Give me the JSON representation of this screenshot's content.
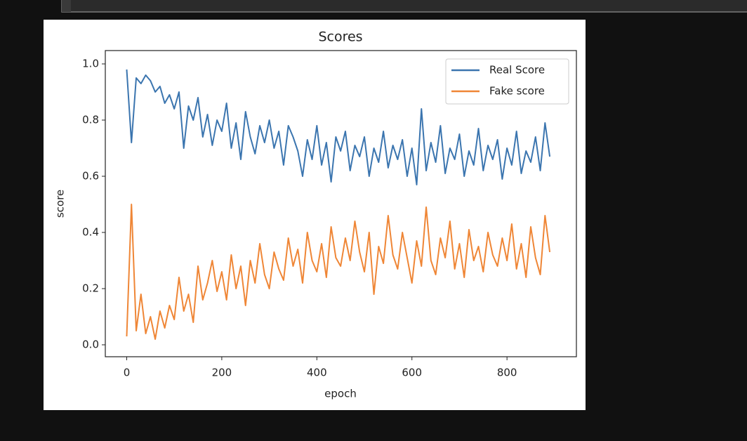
{
  "chart_data": {
    "type": "line",
    "title": "Scores",
    "x_label": "epoch",
    "y_label": "score",
    "x": [
      0,
      10,
      20,
      30,
      40,
      50,
      60,
      70,
      80,
      90,
      100,
      110,
      120,
      130,
      140,
      150,
      160,
      170,
      180,
      190,
      200,
      210,
      220,
      230,
      240,
      250,
      260,
      270,
      280,
      290,
      300,
      310,
      320,
      330,
      340,
      350,
      360,
      370,
      380,
      390,
      400,
      410,
      420,
      430,
      440,
      450,
      460,
      470,
      480,
      490,
      500,
      510,
      520,
      530,
      540,
      550,
      560,
      570,
      580,
      590,
      600,
      610,
      620,
      630,
      640,
      650,
      660,
      670,
      680,
      690,
      700,
      710,
      720,
      730,
      740,
      750,
      760,
      770,
      780,
      790,
      800,
      810,
      820,
      830,
      840,
      850,
      860,
      870,
      880,
      890
    ],
    "series": [
      {
        "name": "Real Score",
        "color": "#3b75af",
        "values": [
          0.98,
          0.72,
          0.95,
          0.93,
          0.96,
          0.94,
          0.9,
          0.92,
          0.86,
          0.89,
          0.84,
          0.9,
          0.7,
          0.85,
          0.8,
          0.88,
          0.74,
          0.82,
          0.71,
          0.8,
          0.76,
          0.86,
          0.7,
          0.79,
          0.66,
          0.83,
          0.74,
          0.68,
          0.78,
          0.72,
          0.8,
          0.7,
          0.76,
          0.64,
          0.78,
          0.74,
          0.69,
          0.6,
          0.73,
          0.66,
          0.78,
          0.64,
          0.72,
          0.58,
          0.74,
          0.69,
          0.76,
          0.62,
          0.71,
          0.67,
          0.74,
          0.6,
          0.7,
          0.65,
          0.76,
          0.63,
          0.71,
          0.66,
          0.73,
          0.6,
          0.7,
          0.57,
          0.84,
          0.62,
          0.72,
          0.65,
          0.78,
          0.61,
          0.7,
          0.66,
          0.75,
          0.6,
          0.69,
          0.64,
          0.77,
          0.62,
          0.71,
          0.66,
          0.73,
          0.59,
          0.7,
          0.64,
          0.76,
          0.61,
          0.69,
          0.65,
          0.74,
          0.62,
          0.79,
          0.67
        ]
      },
      {
        "name": "Fake score",
        "color": "#ef8636",
        "values": [
          0.03,
          0.5,
          0.05,
          0.18,
          0.04,
          0.1,
          0.02,
          0.12,
          0.06,
          0.14,
          0.09,
          0.24,
          0.12,
          0.18,
          0.08,
          0.28,
          0.16,
          0.22,
          0.3,
          0.19,
          0.26,
          0.16,
          0.32,
          0.2,
          0.28,
          0.14,
          0.3,
          0.22,
          0.36,
          0.25,
          0.2,
          0.33,
          0.27,
          0.23,
          0.38,
          0.28,
          0.34,
          0.22,
          0.4,
          0.3,
          0.26,
          0.36,
          0.24,
          0.42,
          0.31,
          0.28,
          0.38,
          0.3,
          0.44,
          0.33,
          0.26,
          0.4,
          0.18,
          0.35,
          0.29,
          0.46,
          0.32,
          0.27,
          0.4,
          0.31,
          0.22,
          0.37,
          0.28,
          0.49,
          0.3,
          0.25,
          0.38,
          0.31,
          0.44,
          0.27,
          0.36,
          0.24,
          0.41,
          0.3,
          0.35,
          0.26,
          0.4,
          0.32,
          0.28,
          0.38,
          0.3,
          0.43,
          0.27,
          0.36,
          0.24,
          0.42,
          0.31,
          0.25,
          0.46,
          0.33
        ]
      }
    ],
    "xlim": [
      -45,
      946
    ],
    "ylim": [
      -0.0425,
      1.0475
    ],
    "xticks": [
      0,
      200,
      400,
      600,
      800
    ],
    "yticks": [
      {
        "value": 0,
        "label": "0.0"
      },
      0.2,
      0.4,
      0.6,
      0.8,
      {
        "value": 1,
        "label": "1.0"
      }
    ],
    "legend": "upper right"
  }
}
